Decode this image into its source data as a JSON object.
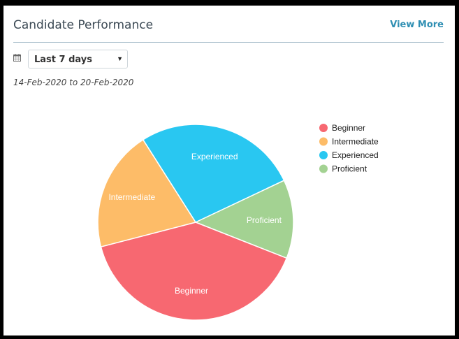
{
  "card": {
    "title": "Candidate Performance",
    "view_more": "View More"
  },
  "filter": {
    "icon": "calendar-icon",
    "selected": "Last 7 days",
    "date_range": "14-Feb-2020 to 20-Feb-2020"
  },
  "chart_data": {
    "type": "pie",
    "title": "",
    "slices": [
      {
        "label": "Beginner",
        "value": 40,
        "color": "#f76871"
      },
      {
        "label": "Intermediate",
        "value": 20,
        "color": "#fdbc68"
      },
      {
        "label": "Experienced",
        "value": 27,
        "color": "#29c7f1"
      },
      {
        "label": "Proficient",
        "value": 13,
        "color": "#a3d292"
      }
    ],
    "legend_position": "top-right"
  }
}
